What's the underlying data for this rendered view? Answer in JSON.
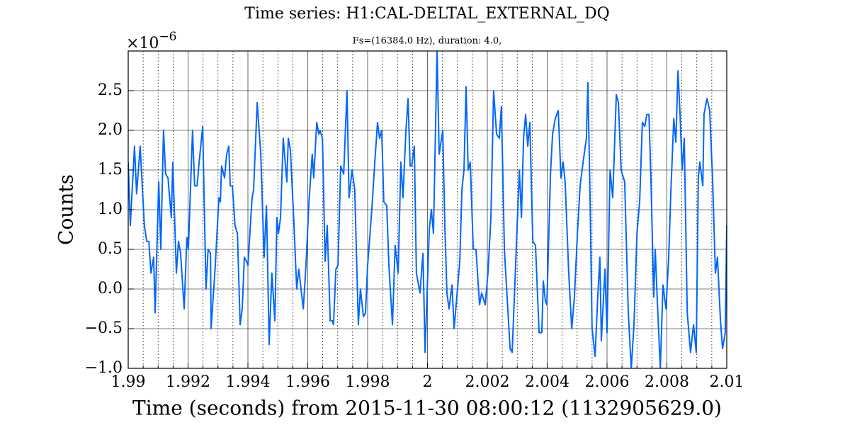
{
  "chart_data": {
    "type": "line",
    "title": "Time series: H1:CAL-DELTAL_EXTERNAL_DQ",
    "subtitle": "Fs=(16384.0 Hz), duration: 4.0,",
    "xlabel": "Time (seconds) from 2015-11-30 08:00:12 (1132905629.0)",
    "ylabel": "Counts",
    "yoffset": {
      "base": "×10",
      "exponent": "−6"
    },
    "xlim": [
      1.99,
      2.01
    ],
    "ylim": [
      -1,
      3
    ],
    "xticks": [
      1.99,
      1.992,
      1.994,
      1.996,
      1.998,
      2,
      2.002,
      2.004,
      2.006,
      2.008,
      2.01
    ],
    "xminorticks": [
      1.9905,
      1.991,
      1.9915,
      1.9925,
      1.993,
      1.9935,
      1.9945,
      1.995,
      1.9955,
      1.9965,
      1.997,
      1.9975,
      1.9985,
      1.999,
      1.9995,
      2.0005,
      2.001,
      2.0015,
      2.0025,
      2.003,
      2.0035,
      2.0045,
      2.005,
      2.0055,
      2.0065,
      2.007,
      2.0075,
      2.0085,
      2.009,
      2.0095
    ],
    "yticks": [
      {
        "value": -1.0,
        "label": "−1.0"
      },
      {
        "value": -0.5,
        "label": "−0.5"
      },
      {
        "value": 0.0,
        "label": "0.0"
      },
      {
        "value": 0.5,
        "label": "0.5"
      },
      {
        "value": 1.0,
        "label": "1.0"
      },
      {
        "value": 1.5,
        "label": "1.5"
      },
      {
        "value": 2.0,
        "label": "2.0"
      },
      {
        "value": 2.5,
        "label": "2.5"
      }
    ],
    "grid": true,
    "series": [
      {
        "color": "#0066ff",
        "x": [
          1.99,
          1.99007,
          1.99021,
          1.99028,
          1.9904,
          1.99054,
          1.99062,
          1.99069,
          1.99076,
          1.99085,
          1.9909,
          1.99102,
          1.99109,
          1.99118,
          1.99125,
          1.99133,
          1.99144,
          1.99149,
          1.99161,
          1.99168,
          1.99175,
          1.99187,
          1.99196,
          1.99201,
          1.99215,
          1.99222,
          1.9923,
          1.99237,
          1.99249,
          1.99253,
          1.9926,
          1.99267,
          1.99275,
          1.99277,
          1.99291,
          1.99303,
          1.99308,
          1.99312,
          1.99322,
          1.99329,
          1.99336,
          1.99341,
          1.99348,
          1.99357,
          1.99365,
          1.99374,
          1.99381,
          1.99388,
          1.99395,
          1.994,
          1.99414,
          1.99419,
          1.99431,
          1.99443,
          1.99454,
          1.99462,
          1.99471,
          1.9948,
          1.9949,
          1.99497,
          1.99502,
          1.99509,
          1.99518,
          1.9953,
          1.99535,
          1.99542,
          1.99554,
          1.99563,
          1.9957,
          1.99585,
          1.99594,
          1.99604,
          1.99615,
          1.9962,
          1.9963,
          1.99637,
          1.99641,
          1.99649,
          1.99658,
          1.99665,
          1.99675,
          1.99682,
          1.99686,
          1.99694,
          1.99701,
          1.9971,
          1.9972,
          1.99731,
          1.99738,
          1.99748,
          1.99757,
          1.99769,
          1.99776,
          1.99786,
          1.99793,
          1.998,
          1.99814,
          1.99824,
          1.99833,
          1.9984,
          1.99847,
          1.99854,
          1.99864,
          1.99871,
          1.99883,
          1.99892,
          1.99902,
          1.99911,
          1.99918,
          1.99928,
          1.99935,
          1.99942,
          1.99947,
          1.99956,
          1.99963,
          1.99975,
          1.99985,
          1.99992,
          2.00006,
          2.00013,
          2.0002,
          2.00032,
          2.00039,
          2.00051,
          2.00058,
          2.00065,
          2.00072,
          2.00082,
          2.00089,
          2.00098,
          2.00108,
          2.00115,
          2.00122,
          2.00129,
          2.00136,
          2.00143,
          2.00153,
          2.00162,
          2.00174,
          2.00181,
          2.00193,
          2.00202,
          2.00212,
          2.00221,
          2.00231,
          2.0024,
          2.00247,
          2.00257,
          2.00266,
          2.00276,
          2.00283,
          2.00295,
          2.00307,
          2.00314,
          2.00321,
          2.00328,
          2.00335,
          2.00342,
          2.00352,
          2.00361,
          2.00373,
          2.00382,
          2.00387,
          2.00394,
          2.00399,
          2.00411,
          2.00418,
          2.00427,
          2.00437,
          2.00446,
          2.00453,
          2.0046,
          2.00472,
          2.00482,
          2.00491,
          2.00501,
          2.0051,
          2.0052,
          2.00531,
          2.00536,
          2.00543,
          2.0055,
          2.0056,
          2.00569,
          2.00576,
          2.00581,
          2.00593,
          2.006,
          2.0061,
          2.00619,
          2.00631,
          2.00638,
          2.00647,
          2.00659,
          2.00671,
          2.00681,
          2.0069,
          2.007,
          2.00709,
          2.00718,
          2.00726,
          2.00733,
          2.0074,
          2.00747,
          2.00756,
          2.00761,
          2.00768,
          2.00778,
          2.00787,
          2.00797,
          2.00806,
          2.00813,
          2.00823,
          2.0083,
          2.00837,
          2.00844,
          2.00851,
          2.00858,
          2.00868,
          2.00879,
          2.00889,
          2.00898,
          2.00905,
          2.0091,
          2.0092,
          2.00924,
          2.00934,
          2.00943,
          2.00953,
          2.00962,
          2.00969,
          2.00979,
          2.00986,
          2.00995,
          2.01
        ],
        "values": [
          1.6,
          0.8,
          1.8,
          1.2,
          1.8,
          0.8,
          0.6,
          0.6,
          0.2,
          0.4,
          -0.3,
          1.35,
          0.5,
          2.0,
          1.45,
          1.4,
          0.9,
          1.6,
          0.2,
          0.6,
          0.45,
          -0.25,
          0.65,
          0.5,
          2.0,
          1.3,
          1.3,
          1.6,
          2.05,
          1.25,
          0.0,
          0.5,
          0.45,
          -0.5,
          0.3,
          1.15,
          1.1,
          1.55,
          1.4,
          1.7,
          1.8,
          1.3,
          1.3,
          0.8,
          0.7,
          -0.45,
          -0.25,
          0.4,
          0.35,
          0.3,
          1.15,
          1.25,
          2.35,
          1.7,
          0.4,
          1.05,
          -0.7,
          0.2,
          -0.4,
          0.9,
          0.7,
          0.9,
          1.9,
          1.35,
          1.9,
          1.75,
          0.8,
          0.0,
          0.25,
          -0.25,
          0.3,
          1.1,
          1.7,
          1.4,
          2.1,
          1.95,
          2.0,
          1.9,
          0.35,
          0.8,
          -0.4,
          -0.4,
          -0.45,
          0.25,
          0.3,
          1.55,
          1.45,
          2.5,
          1.15,
          1.5,
          1.25,
          -0.45,
          0.0,
          -0.35,
          -0.3,
          0.3,
          1.0,
          1.6,
          2.1,
          1.9,
          2.0,
          1.1,
          1.05,
          0.3,
          -0.45,
          0.55,
          0.2,
          1.6,
          1.15,
          2.0,
          2.4,
          1.55,
          1.55,
          1.8,
          0.2,
          -0.05,
          0.45,
          -0.8,
          0.75,
          1.0,
          0.7,
          3.0,
          1.7,
          2.0,
          0.8,
          -0.05,
          -0.25,
          0.05,
          -0.5,
          -0.1,
          0.35,
          1.25,
          1.5,
          2.55,
          1.5,
          1.6,
          0.5,
          0.5,
          -0.2,
          -0.05,
          -0.2,
          0.2,
          0.9,
          2.5,
          1.95,
          1.9,
          2.3,
          0.5,
          -0.1,
          -0.75,
          -0.8,
          0.35,
          1.5,
          0.9,
          1.9,
          2.2,
          1.8,
          2.1,
          0.6,
          0.55,
          -0.55,
          -0.55,
          0.1,
          -0.15,
          -0.2,
          1.45,
          1.95,
          2.15,
          2.25,
          1.4,
          1.6,
          1.35,
          0.2,
          -0.5,
          -0.1,
          0.7,
          1.3,
          1.6,
          1.9,
          2.6,
          1.2,
          -0.5,
          -0.85,
          -0.1,
          0.4,
          -0.65,
          0.25,
          -0.55,
          1.5,
          1.15,
          2.45,
          2.35,
          1.5,
          1.35,
          -0.3,
          -1.0,
          -0.45,
          0.7,
          1.1,
          2.1,
          2.05,
          2.2,
          2.2,
          1.35,
          -0.1,
          0.5,
          -0.15,
          -1.0,
          0.05,
          -0.25,
          0.4,
          1.2,
          2.15,
          1.85,
          2.75,
          2.2,
          1.5,
          1.9,
          -0.3,
          -0.8,
          -0.45,
          -0.8,
          1.4,
          1.6,
          1.3,
          2.2,
          2.4,
          2.25,
          1.35,
          0.2,
          0.4,
          -0.4,
          -0.75,
          -0.55,
          0.8
        ]
      }
    ]
  }
}
